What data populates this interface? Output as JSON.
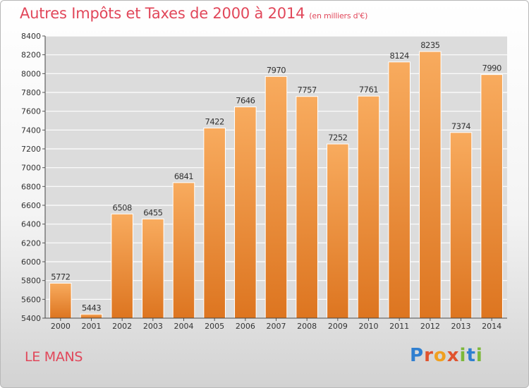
{
  "title": "Autres Impôts et Taxes de 2000 à 2014",
  "unit": "(en milliers d'€)",
  "location": "LE MANS",
  "logo": [
    "P",
    "r",
    "o",
    "x",
    "i",
    "t",
    "i"
  ],
  "colors": {
    "bar_light": "#f8ab5e",
    "bar_dark": "#dd7520",
    "title": "#e1475a",
    "grid": "#ffffff",
    "plot_bg": "#dcdcdc"
  },
  "chart_data": {
    "type": "bar",
    "categories": [
      "2000",
      "2001",
      "2002",
      "2003",
      "2004",
      "2005",
      "2006",
      "2007",
      "2008",
      "2009",
      "2010",
      "2011",
      "2012",
      "2013",
      "2014"
    ],
    "values": [
      5772,
      5443,
      6508,
      6455,
      6841,
      7422,
      7646,
      7970,
      7757,
      7252,
      7761,
      8124,
      8235,
      7374,
      7990
    ],
    "ylim": [
      5400,
      8400
    ],
    "yticks": [
      5400,
      5600,
      5800,
      6000,
      6200,
      6400,
      6600,
      6800,
      7000,
      7200,
      7400,
      7600,
      7800,
      8000,
      8200,
      8400
    ],
    "grid": true,
    "data_labels": true
  }
}
